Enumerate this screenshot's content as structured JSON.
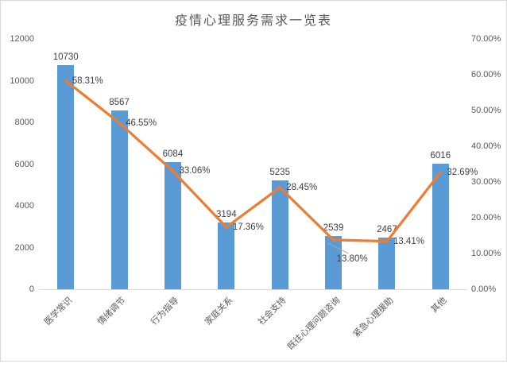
{
  "window": {
    "background": "#ffffff",
    "border_color": "#d9d9d9"
  },
  "chart_data": {
    "type": "bar+line",
    "title": "疫情心理服务需求一览表",
    "legend": "none",
    "grid": false,
    "categories": [
      "医学常识",
      "情绪调节",
      "行为指导",
      "家庭关系",
      "社会支持",
      "既往心理问题咨询",
      "紧急心理援助",
      "其他"
    ],
    "series": [
      {
        "name": "demand-count",
        "type": "bar",
        "axis": "left",
        "color": "#5B9BD5",
        "values": [
          10730,
          8567,
          6084,
          3194,
          5235,
          2539,
          2467,
          6016
        ],
        "labels": [
          "10730",
          "8567",
          "6084",
          "3194",
          "5235",
          "2539",
          "2467",
          "6016"
        ]
      },
      {
        "name": "demand-percentage",
        "type": "line",
        "axis": "right",
        "color": "#ED7D31",
        "values": [
          58.31,
          46.55,
          33.06,
          17.36,
          28.45,
          13.8,
          13.41,
          32.69
        ],
        "labels": [
          "58.31%",
          "46.55%",
          "33.06%",
          "17.36%",
          "28.45%",
          "13.80%",
          "13.41%",
          "32.69%"
        ],
        "callout_index": 5
      }
    ],
    "left_axis": {
      "min": 0,
      "max": 12000,
      "ticks": [
        {
          "label": "12000",
          "value": 12000
        },
        {
          "label": "10000",
          "value": 10000
        },
        {
          "label": "8000",
          "value": 8000
        },
        {
          "label": "6000",
          "value": 6000
        },
        {
          "label": "4000",
          "value": 4000
        },
        {
          "label": "2000",
          "value": 2000
        },
        {
          "label": "0",
          "value": 0
        }
      ]
    },
    "right_axis": {
      "min": 0,
      "max": 70,
      "ticks": [
        {
          "label": "70.00%",
          "value": 70
        },
        {
          "label": "60.00%",
          "value": 60
        },
        {
          "label": "50.00%",
          "value": 50
        },
        {
          "label": "40.00%",
          "value": 40
        },
        {
          "label": "30.00%",
          "value": 30
        },
        {
          "label": "20.00%",
          "value": 20
        },
        {
          "label": "10.00%",
          "value": 10
        },
        {
          "label": "0.00%",
          "value": 0
        }
      ]
    },
    "label_color": "#404040",
    "axis_text_color": "#595959",
    "axis_line_color": "#d9d9d9",
    "leader_line_color": "#a6a6a6"
  }
}
